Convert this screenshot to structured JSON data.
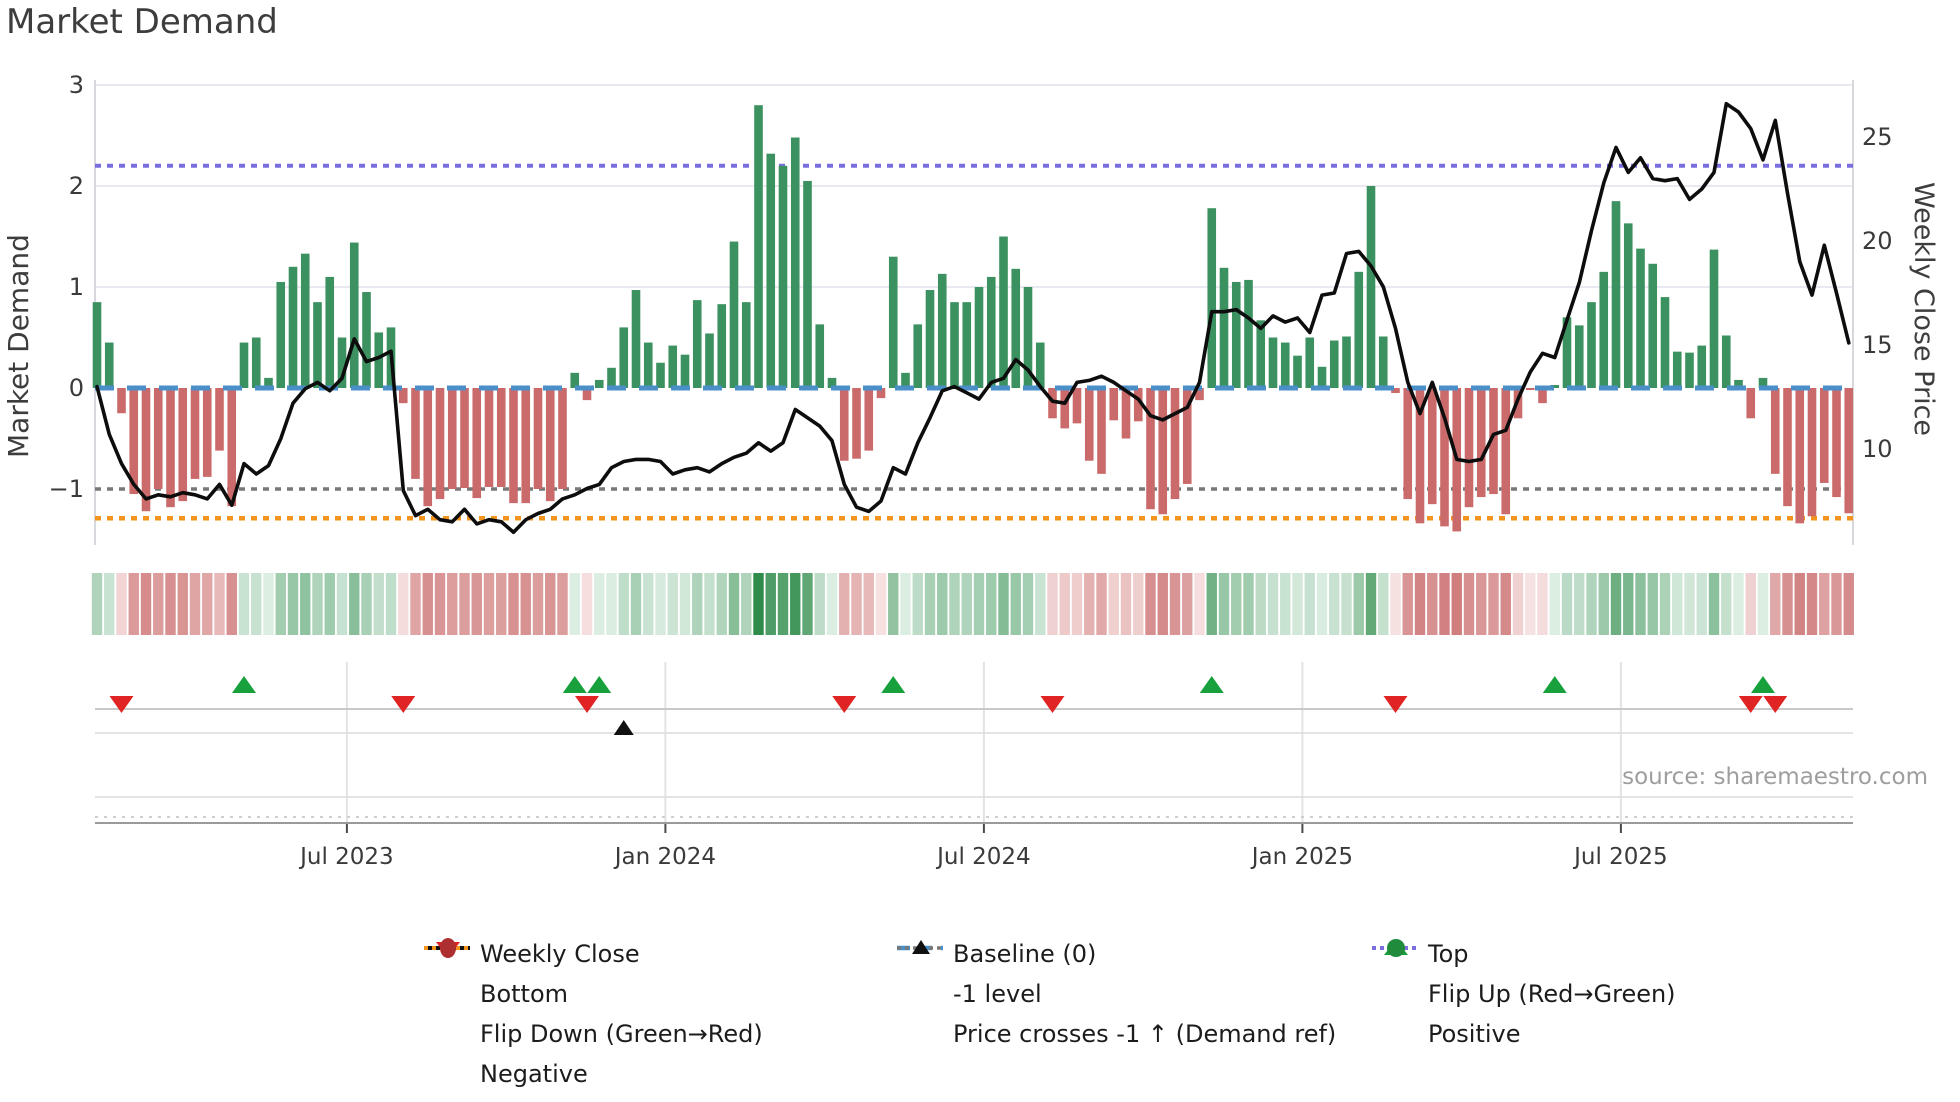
{
  "title": "Market Demand",
  "source": "source: sharemaestro.com",
  "left_axis": {
    "label": "Market Demand",
    "ticks": [
      {
        "value": 3,
        "label": "3"
      },
      {
        "value": 2,
        "label": "2"
      },
      {
        "value": 1,
        "label": "1"
      },
      {
        "value": 0,
        "label": "0"
      },
      {
        "value": -1,
        "label": "−1"
      }
    ]
  },
  "right_axis": {
    "label": "Weekly Close Price",
    "ticks": [
      {
        "value": 25,
        "label": "25"
      },
      {
        "value": 20,
        "label": "20"
      },
      {
        "value": 15,
        "label": "15"
      },
      {
        "value": 10,
        "label": "10"
      }
    ]
  },
  "colors": {
    "bar_positive": "#3b915f",
    "bar_negative": "#ca6a6a",
    "baseline_blue": "#4b8fc9",
    "top_purple": "#7b6fdd",
    "minus1_gray": "#787878",
    "bottom_orange": "#f2941d",
    "price_line": "#0d0d0d",
    "flip_up_green": "#17a03c",
    "flip_down_red": "#e02424",
    "positive_dot_green": "#1f8b3b",
    "negative_dot_red": "#ad2f2f",
    "heat_green_lo": "#e7f4ec",
    "heat_green_hi": "#2e8b4a",
    "heat_red_lo": "#f9e7e7",
    "heat_red_hi": "#cf7b7b"
  },
  "legend": {
    "columns": [
      [
        {
          "id": "weekly-close",
          "label": "Weekly Close",
          "marker": "line-solid-black"
        },
        {
          "id": "bottom",
          "label": "Bottom",
          "marker": "line-dotted-orange"
        },
        {
          "id": "flip-down",
          "label": "Flip Down (Green→Red)",
          "marker": "triangle-down-red"
        },
        {
          "id": "negative",
          "label": "Negative",
          "marker": "ellipse-darkred"
        }
      ],
      [
        {
          "id": "baseline",
          "label": "Baseline (0)",
          "marker": "line-dashed-blue"
        },
        {
          "id": "minus1-level",
          "label": "-1 level",
          "marker": "line-dotted-gray"
        },
        {
          "id": "price-crosses",
          "label": "Price crosses -1 ↑ (Demand ref)",
          "marker": "triangle-up-black"
        }
      ],
      [
        {
          "id": "top",
          "label": "Top",
          "marker": "line-dotted-purple"
        },
        {
          "id": "flip-up",
          "label": "Flip Up (Red→Green)",
          "marker": "triangle-up-green"
        },
        {
          "id": "positive",
          "label": "Positive",
          "marker": "circle-green"
        }
      ]
    ]
  },
  "chart_data": {
    "type": "combo-bar-line-heatmap",
    "title": "Market Demand",
    "ylabel_left": "Market Demand",
    "ylabel_right": "Weekly Close Price",
    "x_is_weekly": true,
    "n_weeks": 144,
    "ylim_left": [
      -1.6,
      3.05
    ],
    "ylim_right_ticks": [
      10,
      15,
      20,
      25
    ],
    "grid_values_left": [
      1,
      2,
      3
    ],
    "reference_lines": {
      "baseline": 0.0,
      "top": 2.2,
      "minus1_level": -1.0,
      "bottom": -1.29
    },
    "x_ticks": [
      {
        "label": "Jul 2023",
        "week": 20.4
      },
      {
        "label": "Jan 2024",
        "week": 46.4
      },
      {
        "label": "Jul 2024",
        "week": 72.4
      },
      {
        "label": "Jan 2025",
        "week": 98.4
      },
      {
        "label": "Jul 2025",
        "week": 124.4
      }
    ],
    "series": [
      {
        "name": "Market Demand",
        "type": "bar",
        "values": [
          0.85,
          0.45,
          -0.25,
          -1.05,
          -1.22,
          -1.0,
          -1.18,
          -1.12,
          -0.9,
          -0.88,
          -0.62,
          -1.17,
          0.45,
          0.5,
          0.1,
          1.05,
          1.2,
          1.33,
          0.85,
          1.1,
          0.5,
          1.44,
          0.95,
          0.55,
          0.6,
          -0.15,
          -0.9,
          -1.17,
          -1.1,
          -1.0,
          -0.99,
          -1.09,
          -0.98,
          -0.98,
          -1.14,
          -1.14,
          -1.0,
          -1.12,
          -1.0,
          0.15,
          -0.12,
          0.08,
          0.2,
          0.6,
          0.97,
          0.45,
          0.25,
          0.42,
          0.33,
          0.87,
          0.54,
          0.83,
          1.45,
          0.85,
          2.8,
          2.32,
          2.2,
          2.48,
          2.05,
          0.63,
          0.1,
          -0.72,
          -0.7,
          -0.62,
          -0.1,
          1.3,
          0.15,
          0.63,
          0.97,
          1.13,
          0.85,
          0.85,
          1.0,
          1.1,
          1.5,
          1.18,
          1.0,
          0.45,
          -0.3,
          -0.4,
          -0.35,
          -0.72,
          -0.85,
          -0.32,
          -0.5,
          -0.33,
          -1.2,
          -1.25,
          -1.1,
          -0.95,
          -0.12,
          1.78,
          1.19,
          1.05,
          1.07,
          0.67,
          0.5,
          0.45,
          0.32,
          0.5,
          0.21,
          0.47,
          0.51,
          1.15,
          2.0,
          0.51,
          -0.05,
          -1.1,
          -1.34,
          -1.15,
          -1.37,
          -1.42,
          -1.18,
          -1.08,
          -1.05,
          -1.25,
          -0.3,
          -0.02,
          -0.15,
          0.03,
          0.7,
          0.62,
          0.85,
          1.15,
          1.85,
          1.63,
          1.38,
          1.23,
          0.9,
          0.36,
          0.35,
          0.42,
          1.37,
          0.52,
          0.08,
          -0.3,
          0.1,
          -0.85,
          -1.17,
          -1.34,
          -1.27,
          -0.94,
          -1.08,
          -1.24
        ]
      },
      {
        "name": "Weekly Close",
        "type": "line",
        "axis": "right",
        "values": [
          13.0,
          10.7,
          9.3,
          8.3,
          7.6,
          7.8,
          7.7,
          7.9,
          7.8,
          7.6,
          8.3,
          7.3,
          9.3,
          8.8,
          9.2,
          10.5,
          12.2,
          12.9,
          13.2,
          12.8,
          13.4,
          15.3,
          14.2,
          14.4,
          14.7,
          8.0,
          6.8,
          7.1,
          6.6,
          6.5,
          7.1,
          6.4,
          6.6,
          6.5,
          6.0,
          6.6,
          6.9,
          7.1,
          7.6,
          7.8,
          8.1,
          8.3,
          9.1,
          9.4,
          9.5,
          9.5,
          9.4,
          8.8,
          9.0,
          9.1,
          8.9,
          9.3,
          9.6,
          9.8,
          10.3,
          9.9,
          10.3,
          11.9,
          11.5,
          11.1,
          10.4,
          8.3,
          7.2,
          7.0,
          7.5,
          9.1,
          8.8,
          10.3,
          11.5,
          12.8,
          13.0,
          12.7,
          12.4,
          13.2,
          13.4,
          14.3,
          13.8,
          13.0,
          12.3,
          12.2,
          13.2,
          13.3,
          13.5,
          13.2,
          12.8,
          12.4,
          11.6,
          11.4,
          11.7,
          12.0,
          13.2,
          16.6,
          16.6,
          16.7,
          16.3,
          15.8,
          16.4,
          16.1,
          16.3,
          15.6,
          17.4,
          17.5,
          19.4,
          19.5,
          18.8,
          17.8,
          15.8,
          13.2,
          11.7,
          13.2,
          11.5,
          9.5,
          9.4,
          9.5,
          10.7,
          10.9,
          12.4,
          13.7,
          14.6,
          14.4,
          16.2,
          18.0,
          20.5,
          22.8,
          24.5,
          23.3,
          24.0,
          23.0,
          22.9,
          23.0,
          22.0,
          22.5,
          23.3,
          26.6,
          26.2,
          25.4,
          23.9,
          25.8,
          22.3,
          19.0,
          17.4,
          19.8,
          17.5,
          15.1
        ]
      }
    ],
    "heatmap": {
      "note": "color strip encodes the weekly Market Demand bar values (green positive, red negative)",
      "uses_series": "Market Demand"
    },
    "markers": {
      "flip_up_weeks": [
        12,
        39,
        41,
        65,
        91,
        119,
        136
      ],
      "flip_down_weeks": [
        2,
        25,
        40,
        61,
        78,
        106,
        135,
        137
      ],
      "price_cross_weeks": [
        43
      ]
    }
  }
}
